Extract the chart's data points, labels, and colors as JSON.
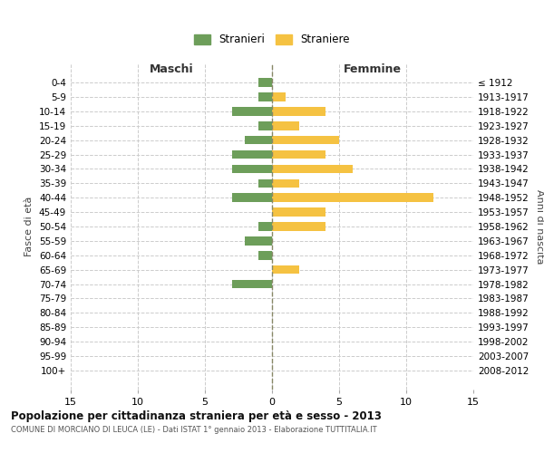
{
  "age_groups": [
    "0-4",
    "5-9",
    "10-14",
    "15-19",
    "20-24",
    "25-29",
    "30-34",
    "35-39",
    "40-44",
    "45-49",
    "50-54",
    "55-59",
    "60-64",
    "65-69",
    "70-74",
    "75-79",
    "80-84",
    "85-89",
    "90-94",
    "95-99",
    "100+"
  ],
  "birth_years": [
    "2008-2012",
    "2003-2007",
    "1998-2002",
    "1993-1997",
    "1988-1992",
    "1983-1987",
    "1978-1982",
    "1973-1977",
    "1968-1972",
    "1963-1967",
    "1958-1962",
    "1953-1957",
    "1948-1952",
    "1943-1947",
    "1938-1942",
    "1933-1937",
    "1928-1932",
    "1923-1927",
    "1918-1922",
    "1913-1917",
    "≤ 1912"
  ],
  "males": [
    1,
    1,
    3,
    1,
    2,
    3,
    3,
    1,
    3,
    0,
    1,
    2,
    1,
    0,
    3,
    0,
    0,
    0,
    0,
    0,
    0
  ],
  "females": [
    0,
    1,
    4,
    2,
    5,
    4,
    6,
    2,
    12,
    4,
    4,
    0,
    0,
    2,
    0,
    0,
    0,
    0,
    0,
    0,
    0
  ],
  "male_color": "#6d9e5a",
  "female_color": "#f5c242",
  "background_color": "#ffffff",
  "grid_color": "#cccccc",
  "center_line_color": "#888866",
  "title": "Popolazione per cittadinanza straniera per età e sesso - 2013",
  "subtitle": "COMUNE DI MORCIANO DI LEUCA (LE) - Dati ISTAT 1° gennaio 2013 - Elaborazione TUTTITALIA.IT",
  "left_header": "Maschi",
  "right_header": "Femmine",
  "left_ylabel": "Fasce di età",
  "right_ylabel": "Anni di nascita",
  "legend_male": "Stranieri",
  "legend_female": "Straniere",
  "xlim": 15,
  "xticks": [
    -15,
    -10,
    -5,
    0,
    5,
    10,
    15
  ],
  "xtick_labels": [
    "15",
    "10",
    "5",
    "0",
    "5",
    "10",
    "15"
  ]
}
